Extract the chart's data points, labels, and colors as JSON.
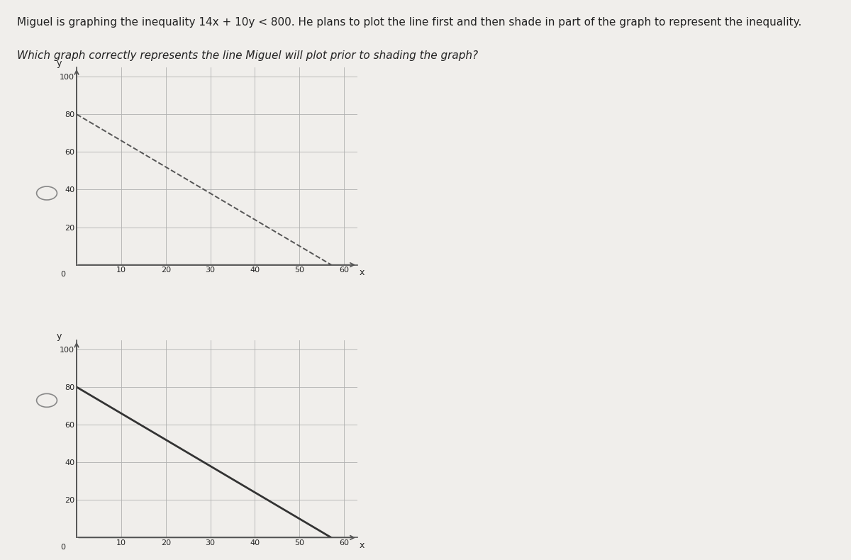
{
  "question_line1": "Miguel is graphing the inequality 14x + 10y < 800. He plans to plot the line first and then shade in part of the graph to represent the inequality.",
  "question_line2": "Which graph correctly represents the line Miguel will plot prior to shading the graph?",
  "bg_color": "#f0eeeb",
  "grid_color": "#b0b0b0",
  "axis_color": "#555555",
  "line_color_dashed": "#555555",
  "line_color_solid": "#333333",
  "xlim": [
    0,
    63
  ],
  "ylim": [
    0,
    105
  ],
  "xticks": [
    0,
    10,
    20,
    30,
    40,
    50,
    60
  ],
  "yticks": [
    0,
    20,
    40,
    60,
    80,
    100
  ],
  "xlabel": "x",
  "ylabel": "y",
  "x_intercept": 57.14,
  "y_intercept": 80,
  "graph1_linestyle": "dashed",
  "graph2_linestyle": "solid",
  "text_color": "#222222",
  "q_fontsize": 11,
  "tick_fontsize": 8,
  "radio_color": "#888888"
}
